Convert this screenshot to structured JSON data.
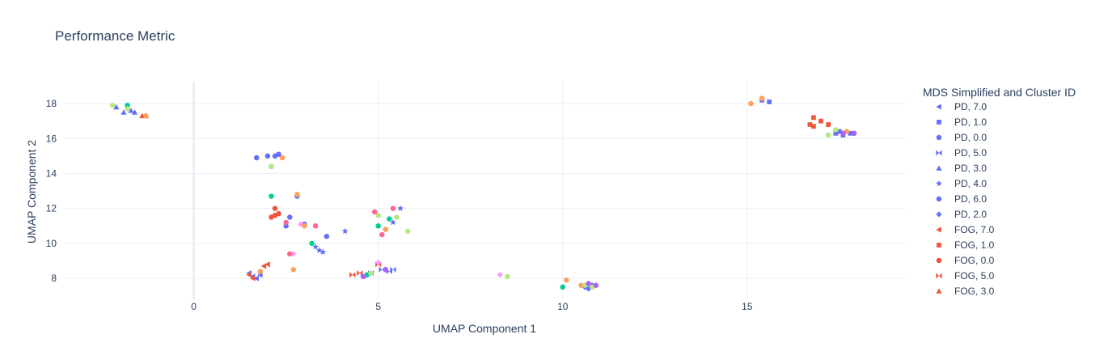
{
  "chart_data": {
    "type": "scatter",
    "title": "Performance Metric",
    "xlabel": "UMAP Component 1",
    "ylabel": "UMAP Component 2",
    "xlim": [
      -3.5,
      19.3
    ],
    "ylim": [
      6.8,
      19.3
    ],
    "xticks": [
      0,
      5,
      10,
      15
    ],
    "yticks": [
      8,
      10,
      12,
      14,
      16,
      18
    ],
    "grid": true,
    "legend": {
      "title": "MDS Simplified and Cluster ID",
      "placement": "right"
    },
    "series": [
      {
        "name": "PD, 7.0",
        "color": "#636efa",
        "symbol": "triangle-left",
        "points": [
          [
            1.6,
            8.1
          ],
          [
            1.7,
            8.0
          ],
          [
            1.8,
            8.2
          ],
          [
            1.5,
            8.3
          ]
        ]
      },
      {
        "name": "PD, 1.0",
        "color": "#636efa",
        "symbol": "square",
        "points": [
          [
            15.4,
            18.2
          ],
          [
            15.6,
            18.1
          ],
          [
            17.4,
            16.3
          ],
          [
            17.6,
            16.2
          ],
          [
            17.8,
            16.3
          ],
          [
            17.5,
            16.4
          ]
        ]
      },
      {
        "name": "PD, 0.0",
        "color": "#636efa",
        "symbol": "circle",
        "points": [
          [
            2.6,
            11.5
          ],
          [
            2.5,
            11.0
          ],
          [
            3.0,
            11.1
          ],
          [
            2.8,
            12.7
          ],
          [
            3.6,
            10.4
          ],
          [
            2.2,
            11.6
          ]
        ]
      },
      {
        "name": "PD, 5.0",
        "color": "#636efa",
        "symbol": "bowtie",
        "points": [
          [
            4.6,
            8.2
          ],
          [
            4.8,
            8.3
          ],
          [
            5.1,
            8.5
          ],
          [
            5.4,
            8.5
          ],
          [
            5.3,
            8.4
          ]
        ]
      },
      {
        "name": "PD, 3.0",
        "color": "#636efa",
        "symbol": "triangle-up",
        "points": [
          [
            -1.9,
            17.5
          ],
          [
            -1.7,
            17.6
          ],
          [
            -1.6,
            17.5
          ],
          [
            -2.1,
            17.8
          ]
        ]
      },
      {
        "name": "PD, 4.0",
        "color": "#636efa",
        "symbol": "star",
        "points": [
          [
            3.4,
            9.6
          ],
          [
            3.3,
            9.8
          ],
          [
            4.1,
            10.7
          ],
          [
            5.4,
            11.2
          ],
          [
            5.6,
            12.0
          ],
          [
            3.5,
            9.5
          ]
        ]
      },
      {
        "name": "PD, 6.0",
        "color": "#636efa",
        "symbol": "circle",
        "points": [
          [
            1.7,
            14.9
          ],
          [
            2.0,
            15.0
          ],
          [
            2.3,
            15.1
          ],
          [
            2.2,
            15.0
          ]
        ]
      },
      {
        "name": "PD, 2.0",
        "color": "#636efa",
        "symbol": "diamond",
        "points": [
          [
            10.8,
            7.6
          ],
          [
            10.6,
            7.5
          ],
          [
            10.9,
            7.6
          ],
          [
            10.7,
            7.4
          ]
        ]
      },
      {
        "name": "FOG, 7.0",
        "color": "#ef553b",
        "symbol": "triangle-left",
        "points": [
          [
            1.5,
            8.2
          ],
          [
            1.9,
            8.7
          ],
          [
            2.0,
            8.8
          ],
          [
            1.6,
            8.0
          ]
        ]
      },
      {
        "name": "FOG, 1.0",
        "color": "#ef553b",
        "symbol": "square",
        "points": [
          [
            16.8,
            17.2
          ],
          [
            16.7,
            16.8
          ],
          [
            17.0,
            17.0
          ],
          [
            17.2,
            16.8
          ],
          [
            16.8,
            16.7
          ]
        ]
      },
      {
        "name": "FOG, 0.0",
        "color": "#ef553b",
        "symbol": "circle",
        "points": [
          [
            2.2,
            12.0
          ],
          [
            2.3,
            11.7
          ],
          [
            2.2,
            11.6
          ],
          [
            2.1,
            11.5
          ]
        ]
      },
      {
        "name": "FOG, 5.0",
        "color": "#ef553b",
        "symbol": "bowtie",
        "points": [
          [
            4.5,
            8.3
          ],
          [
            4.3,
            8.2
          ],
          [
            5.0,
            8.8
          ]
        ]
      },
      {
        "name": "FOG, 3.0",
        "color": "#ef553b",
        "symbol": "triangle-up",
        "points": [
          [
            -1.4,
            17.3
          ],
          [
            -1.3,
            17.3
          ]
        ]
      },
      {
        "name": "",
        "color": "#00cc96",
        "symbol": "circle",
        "points": [
          [
            2.1,
            12.7
          ],
          [
            3.2,
            10.0
          ],
          [
            5.0,
            11.0
          ],
          [
            5.3,
            11.4
          ],
          [
            10.0,
            7.5
          ],
          [
            4.7,
            8.2
          ],
          [
            -1.8,
            17.9
          ],
          [
            2.1,
            14.4
          ]
        ]
      },
      {
        "name": "",
        "color": "#ff97ff",
        "symbol": "diamond",
        "points": [
          [
            8.3,
            8.2
          ],
          [
            2.7,
            9.4
          ],
          [
            2.9,
            11.1
          ],
          [
            3.3,
            11.0
          ],
          [
            5.0,
            8.9
          ],
          [
            5.2,
            10.8
          ]
        ]
      },
      {
        "name": "",
        "color": "#fecb52",
        "symbol": "circle",
        "points": []
      },
      {
        "name": "",
        "color": "#ffa15a",
        "symbol": "circle",
        "points": [
          [
            2.4,
            14.9
          ],
          [
            2.8,
            12.8
          ],
          [
            3.0,
            11.0
          ],
          [
            10.1,
            7.9
          ],
          [
            10.5,
            7.6
          ],
          [
            15.1,
            18.0
          ],
          [
            15.4,
            18.3
          ],
          [
            17.7,
            16.4
          ],
          [
            5.2,
            10.8
          ],
          [
            -1.3,
            17.3
          ],
          [
            1.8,
            8.4
          ],
          [
            2.7,
            8.5
          ]
        ]
      },
      {
        "name": "",
        "color": "#b6e880",
        "symbol": "circle",
        "points": [
          [
            8.5,
            8.1
          ],
          [
            5.8,
            10.7
          ],
          [
            5.5,
            11.5
          ],
          [
            5.0,
            11.6
          ],
          [
            10.6,
            7.6
          ],
          [
            10.8,
            7.5
          ],
          [
            17.2,
            16.2
          ],
          [
            17.4,
            16.5
          ],
          [
            -2.2,
            17.9
          ],
          [
            -1.8,
            17.7
          ],
          [
            2.1,
            14.4
          ],
          [
            4.8,
            8.3
          ]
        ]
      },
      {
        "name": "",
        "color": "#ab63fa",
        "symbol": "circle",
        "points": [
          [
            10.9,
            7.6
          ],
          [
            10.7,
            7.7
          ],
          [
            17.6,
            16.3
          ],
          [
            17.9,
            16.3
          ],
          [
            5.2,
            8.5
          ],
          [
            4.6,
            8.1
          ]
        ]
      },
      {
        "name": "",
        "color": "#19d3f3",
        "symbol": "circle",
        "points": []
      },
      {
        "name": "",
        "color": "#ff6692",
        "symbol": "circle",
        "points": [
          [
            2.5,
            11.2
          ],
          [
            3.3,
            11.0
          ],
          [
            5.1,
            10.5
          ],
          [
            5.4,
            12.0
          ],
          [
            2.6,
            9.4
          ],
          [
            4.9,
            11.8
          ]
        ]
      }
    ]
  }
}
